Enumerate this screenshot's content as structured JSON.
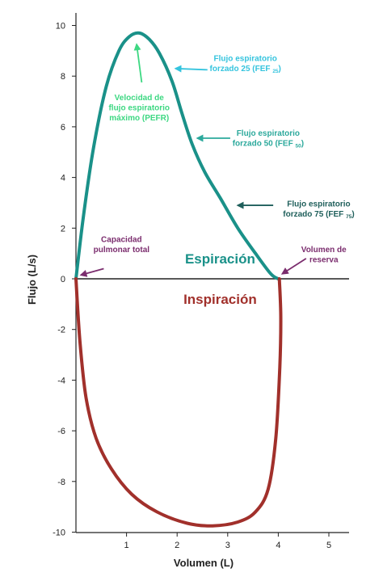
{
  "chart_data": {
    "type": "line",
    "xlabel": "Volumen (L)",
    "ylabel": "Flujo (L/s)",
    "xlim": [
      0,
      5.5
    ],
    "ylim": [
      -10,
      10.5
    ],
    "x_ticks": [
      1,
      2,
      3,
      4,
      5
    ],
    "y_ticks": [
      10,
      8,
      6,
      4,
      2,
      0,
      -2,
      -4,
      -6,
      -8,
      -10
    ],
    "grid": false,
    "series": [
      {
        "name": "Espiración",
        "color": "#1a9189",
        "points": [
          [
            0,
            0
          ],
          [
            0.15,
            2.5
          ],
          [
            0.35,
            5.2
          ],
          [
            0.6,
            7.6
          ],
          [
            0.85,
            9.0
          ],
          [
            1.05,
            9.55
          ],
          [
            1.25,
            9.7
          ],
          [
            1.45,
            9.45
          ],
          [
            1.65,
            8.9
          ],
          [
            1.9,
            7.8
          ],
          [
            2.1,
            6.5
          ],
          [
            2.3,
            5.3
          ],
          [
            2.55,
            4.2
          ],
          [
            2.85,
            3.2
          ],
          [
            3.2,
            2.0
          ],
          [
            3.55,
            1.0
          ],
          [
            3.85,
            0.2
          ],
          [
            4.0,
            0
          ]
        ]
      },
      {
        "name": "Inspiración",
        "color": "#a1302b",
        "points": [
          [
            0,
            0
          ],
          [
            0.08,
            -2.5
          ],
          [
            0.2,
            -4.7
          ],
          [
            0.4,
            -6.3
          ],
          [
            0.7,
            -7.5
          ],
          [
            1.1,
            -8.5
          ],
          [
            1.6,
            -9.2
          ],
          [
            2.2,
            -9.65
          ],
          [
            2.7,
            -9.75
          ],
          [
            3.2,
            -9.6
          ],
          [
            3.55,
            -9.2
          ],
          [
            3.8,
            -8.3
          ],
          [
            3.95,
            -6.3
          ],
          [
            4.03,
            -3.5
          ],
          [
            4.05,
            -1.5
          ],
          [
            4.02,
            0
          ]
        ]
      }
    ],
    "region_labels": [
      {
        "text": "Espiración",
        "color": "#1a9189",
        "x": 2.85,
        "y": 0.6
      },
      {
        "text": "Inspiración",
        "color": "#a1302b",
        "x": 2.85,
        "y": -0.8
      }
    ],
    "annotations": [
      {
        "lines": [
          "Velocidad de",
          "flujo espiratorio",
          "máximo (PEFR)"
        ],
        "color": "#3dd882",
        "anchor": "middle",
        "text_x": 1.25,
        "text_y": 7.05,
        "arrow_from": [
          1.3,
          7.75
        ],
        "arrow_to": [
          1.2,
          9.25
        ]
      },
      {
        "lines": [
          "Flujo espiratorio",
          "forzado 25 (FEF"
        ],
        "sub": "25",
        "sub_close": ")",
        "color": "#35c4de",
        "anchor": "middle",
        "text_x": 3.35,
        "text_y": 8.6,
        "arrow_from": [
          2.6,
          8.25
        ],
        "arrow_to": [
          1.97,
          8.3
        ]
      },
      {
        "lines": [
          "Flujo espiratorio",
          "forzado 50 (FEF"
        ],
        "sub": "50",
        "sub_close": ")",
        "color": "#2ca99c",
        "anchor": "middle",
        "text_x": 3.8,
        "text_y": 5.65,
        "arrow_from": [
          3.05,
          5.55
        ],
        "arrow_to": [
          2.4,
          5.55
        ]
      },
      {
        "lines": [
          "Flujo espiratorio",
          "forzado 75 (FEF"
        ],
        "sub": "75",
        "sub_close": ")",
        "color": "#1f5f5b",
        "anchor": "middle",
        "text_x": 4.8,
        "text_y": 2.85,
        "arrow_from": [
          3.9,
          2.9
        ],
        "arrow_to": [
          3.2,
          2.9
        ]
      },
      {
        "lines": [
          "Capacidad",
          "pulmonar total"
        ],
        "color": "#7b2d6e",
        "anchor": "middle",
        "text_x": 0.9,
        "text_y": 1.45,
        "arrow_from": [
          0.55,
          0.4
        ],
        "arrow_to": [
          0.1,
          0.15
        ]
      },
      {
        "lines": [
          "Volumen de",
          "reserva"
        ],
        "color": "#7b2d6e",
        "anchor": "middle",
        "text_x": 4.9,
        "text_y": 1.05,
        "arrow_from": [
          4.55,
          0.8
        ],
        "arrow_to": [
          4.08,
          0.2
        ]
      }
    ]
  }
}
